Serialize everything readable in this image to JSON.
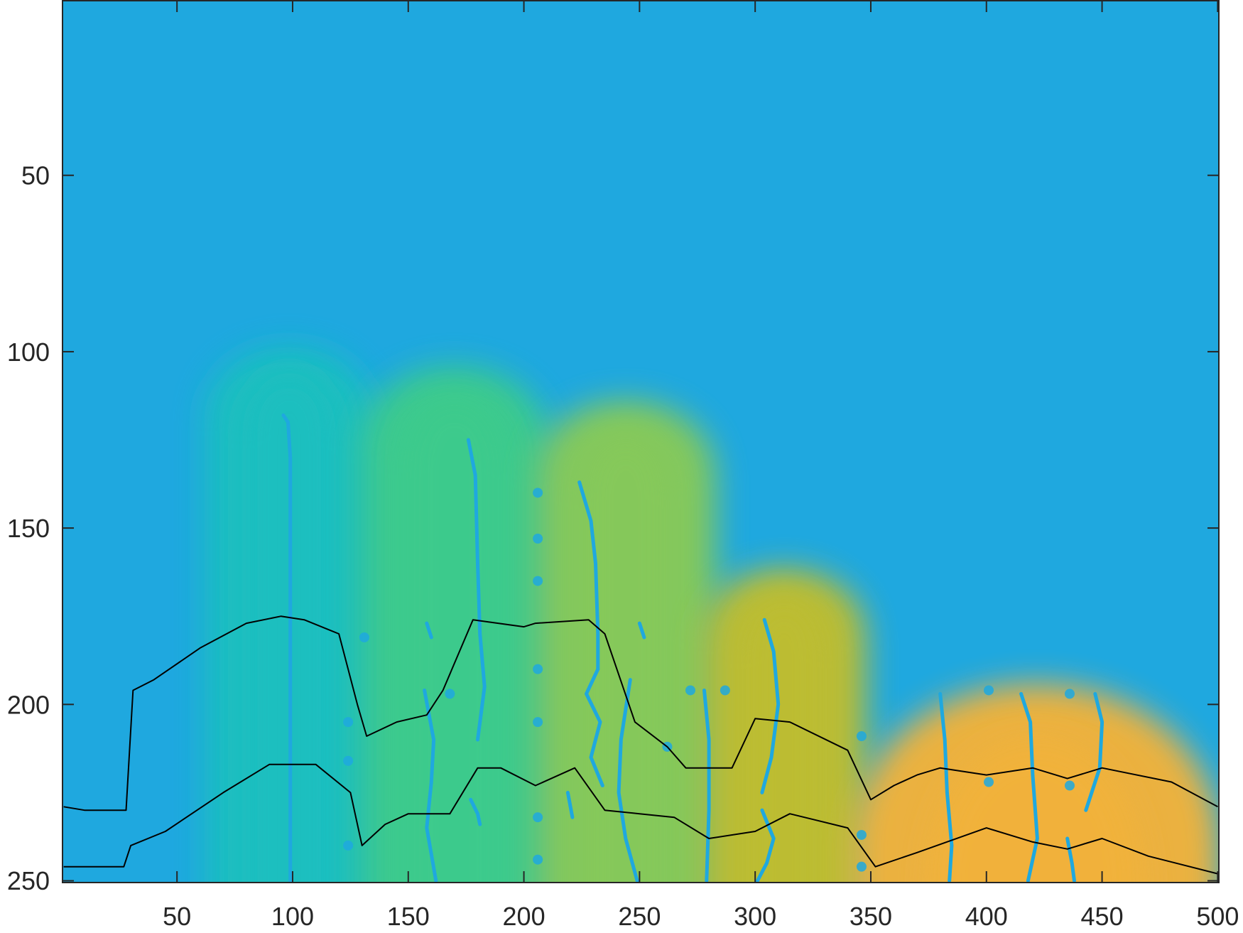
{
  "chart_data": {
    "type": "heatmap",
    "xlabel": "",
    "ylabel": "",
    "xlim": [
      1,
      500
    ],
    "ylim": [
      1,
      250
    ],
    "y_direction": "reversed",
    "x_ticks": [
      50,
      100,
      150,
      200,
      250,
      300,
      350,
      400,
      450,
      500
    ],
    "y_ticks": [
      50,
      100,
      150,
      200,
      250
    ],
    "x_tick_labels": [
      "50",
      "100",
      "150",
      "200",
      "250",
      "300",
      "350",
      "400",
      "450",
      "500"
    ],
    "y_tick_labels": [
      "50",
      "100",
      "150",
      "200",
      "250"
    ],
    "colormap": {
      "background": "#1FA8DF",
      "stops": [
        "#1FA8DF",
        "#1ABFBF",
        "#3CCB8C",
        "#86C95A",
        "#BDBD33",
        "#F2B23A",
        "#FCC934"
      ]
    },
    "regions": [
      {
        "x_from": 65,
        "x_to": 132,
        "top_y": 95,
        "color": "#1ABFBF"
      },
      {
        "x_from": 132,
        "x_to": 208,
        "top_y": 100,
        "color": "#3CCB8C"
      },
      {
        "x_from": 208,
        "x_to": 280,
        "top_y": 110,
        "color": "#86C95A"
      },
      {
        "x_from": 280,
        "x_to": 345,
        "top_y": 158,
        "color": "#BDBD33"
      },
      {
        "x_from": 345,
        "x_to": 498,
        "top_y": 186,
        "color": "#F2B23A"
      }
    ],
    "series": [
      {
        "x": [
          1,
          10,
          28,
          31,
          40,
          60,
          80,
          95,
          105,
          120,
          128,
          132,
          145,
          158,
          165,
          178,
          200,
          205,
          228,
          235,
          248,
          262,
          270,
          290,
          300,
          315,
          340,
          350,
          360,
          370,
          380,
          400,
          420,
          435,
          450,
          480,
          500
        ],
        "y": [
          229,
          230,
          230,
          196,
          193,
          184,
          177,
          175,
          176,
          180,
          200,
          209,
          205,
          203,
          196,
          176,
          178,
          177,
          176,
          180,
          205,
          212,
          218,
          218,
          204,
          205,
          213,
          227,
          223,
          220,
          218,
          220,
          218,
          221,
          218,
          222,
          229
        ],
        "color": "#000000"
      },
      {
        "x": [
          1,
          27,
          30,
          45,
          70,
          90,
          110,
          125,
          130,
          140,
          150,
          168,
          180,
          190,
          205,
          222,
          235,
          250,
          265,
          280,
          300,
          315,
          340,
          352,
          370,
          400,
          420,
          435,
          450,
          470,
          500
        ],
        "y": [
          246,
          246,
          240,
          236,
          225,
          217,
          217,
          225,
          240,
          234,
          231,
          231,
          218,
          218,
          223,
          218,
          230,
          231,
          232,
          238,
          236,
          231,
          235,
          246,
          242,
          235,
          239,
          241,
          238,
          243,
          248
        ],
        "color": "#000000"
      }
    ],
    "streaks": [
      {
        "x": [
          96,
          98,
          99,
          99,
          99
        ],
        "y": [
          118,
          120,
          130,
          200,
          250
        ]
      },
      {
        "x": [
          176,
          179,
          180,
          181,
          183,
          180
        ],
        "y": [
          125,
          135,
          160,
          180,
          195,
          210
        ]
      },
      {
        "x": [
          224,
          229,
          231,
          232,
          232
        ],
        "y": [
          137,
          148,
          160,
          180,
          190
        ]
      },
      {
        "x": [
          232,
          227,
          233,
          229,
          234
        ],
        "y": [
          190,
          197,
          205,
          215,
          223
        ]
      },
      {
        "x": [
          157,
          161,
          160,
          158,
          162
        ],
        "y": [
          196,
          210,
          222,
          235,
          250
        ]
      },
      {
        "x": [
          246,
          242,
          241,
          244,
          249
        ],
        "y": [
          193,
          210,
          225,
          238,
          250
        ]
      },
      {
        "x": [
          278,
          280,
          280,
          279
        ],
        "y": [
          196,
          210,
          230,
          250
        ]
      },
      {
        "x": [
          304,
          308,
          310,
          307,
          303
        ],
        "y": [
          176,
          185,
          200,
          215,
          225
        ]
      },
      {
        "x": [
          303,
          308,
          305,
          301
        ],
        "y": [
          230,
          238,
          245,
          250
        ]
      },
      {
        "x": [
          380,
          382,
          383,
          385,
          384
        ],
        "y": [
          197,
          210,
          225,
          240,
          250
        ]
      },
      {
        "x": [
          415,
          419,
          420,
          422,
          418
        ],
        "y": [
          197,
          205,
          220,
          238,
          250
        ]
      },
      {
        "x": [
          447,
          450,
          449,
          443
        ],
        "y": [
          197,
          205,
          218,
          230
        ]
      },
      {
        "x": [
          435,
          437,
          438
        ],
        "y": [
          238,
          245,
          250
        ]
      },
      {
        "x": [
          158,
          160
        ],
        "y": [
          177,
          181
        ]
      },
      {
        "x": [
          250,
          252
        ],
        "y": [
          177,
          181
        ]
      },
      {
        "x": [
          177,
          180,
          181
        ],
        "y": [
          227,
          231,
          234
        ]
      },
      {
        "x": [
          219,
          221
        ],
        "y": [
          225,
          232
        ]
      }
    ],
    "markers": [
      {
        "x": 206,
        "y": 140
      },
      {
        "x": 206,
        "y": 153
      },
      {
        "x": 206,
        "y": 165
      },
      {
        "x": 206,
        "y": 190
      },
      {
        "x": 206,
        "y": 205
      },
      {
        "x": 206,
        "y": 232
      },
      {
        "x": 206,
        "y": 244
      },
      {
        "x": 124,
        "y": 205
      },
      {
        "x": 124,
        "y": 216
      },
      {
        "x": 124,
        "y": 240
      },
      {
        "x": 131,
        "y": 181
      },
      {
        "x": 346,
        "y": 209
      },
      {
        "x": 346,
        "y": 237
      },
      {
        "x": 346,
        "y": 246
      },
      {
        "x": 401,
        "y": 196
      },
      {
        "x": 401,
        "y": 222
      },
      {
        "x": 436,
        "y": 197
      },
      {
        "x": 436,
        "y": 223
      },
      {
        "x": 272,
        "y": 196
      },
      {
        "x": 287,
        "y": 196
      },
      {
        "x": 168,
        "y": 197
      },
      {
        "x": 262,
        "y": 212
      }
    ]
  }
}
